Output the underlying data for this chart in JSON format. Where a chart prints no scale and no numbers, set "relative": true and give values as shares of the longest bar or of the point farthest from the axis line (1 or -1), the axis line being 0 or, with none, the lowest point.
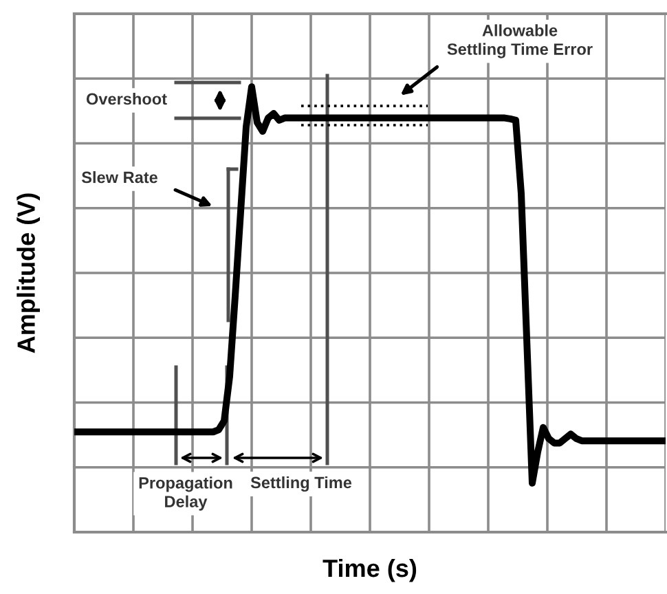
{
  "chart_data": {
    "type": "line",
    "relative": true,
    "xlabel": "Time (s)",
    "ylabel": "Amplitude (V)",
    "grid": true,
    "legend": false,
    "marker": "none",
    "line_style": "solid",
    "categories": [
      null,
      null,
      null,
      null,
      null,
      null,
      null,
      null,
      null,
      null,
      null,
      null,
      null,
      null,
      null,
      null,
      null,
      null,
      null,
      null,
      null,
      null,
      null,
      null,
      null,
      null,
      null,
      null,
      null,
      null,
      null,
      null,
      null,
      null,
      null,
      null,
      null,
      null,
      null,
      null,
      null,
      null,
      null,
      null,
      null,
      null,
      null,
      null,
      null,
      null,
      null,
      null,
      null,
      null,
      null,
      null,
      null,
      null,
      null,
      null,
      null,
      null,
      null,
      null,
      null,
      null,
      null,
      null,
      null,
      null,
      null,
      null,
      null,
      null,
      null,
      null,
      null,
      null,
      null,
      null,
      null,
      null,
      null,
      null,
      null,
      null,
      null,
      null,
      null,
      null,
      null,
      null,
      null,
      null,
      null,
      null,
      null,
      null,
      null,
      null,
      null,
      null,
      null,
      null,
      null,
      null,
      null,
      null
    ],
    "series": [
      {
        "color": "#000000",
        "values": [
          0.225,
          0.225,
          0.225,
          0.225,
          0.225,
          0.225,
          0.225,
          0.225,
          0.225,
          0.225,
          0.225,
          0.225,
          0.225,
          0.225,
          0.225,
          0.225,
          0.225,
          0.225,
          0.225,
          0.225,
          0.225,
          0.225,
          0.225,
          0.225,
          0.225,
          0.225,
          0.23,
          0.25,
          0.35,
          0.53,
          0.72,
          0.91,
          1.0,
          0.92,
          0.9,
          0.93,
          0.94,
          0.925,
          0.93,
          0.93,
          0.93,
          0.93,
          0.93,
          0.93,
          0.93,
          0.93,
          0.93,
          0.93,
          0.93,
          0.93,
          0.93,
          0.93,
          0.93,
          0.93,
          0.93,
          0.93,
          0.93,
          0.93,
          0.93,
          0.93,
          0.93,
          0.93,
          0.93,
          0.93,
          0.93,
          0.93,
          0.93,
          0.93,
          0.93,
          0.93,
          0.93,
          0.93,
          0.93,
          0.93,
          0.93,
          0.93,
          0.93,
          0.93,
          0.93,
          0.928,
          0.925,
          0.76,
          0.435,
          0.11,
          0.18,
          0.235,
          0.21,
          0.2,
          0.2,
          0.21,
          0.22,
          0.21,
          0.205,
          0.205,
          0.205,
          0.205,
          0.205,
          0.205,
          0.205,
          0.205,
          0.205,
          0.205,
          0.205,
          0.205,
          0.205,
          0.205,
          0.205,
          0.205
        ]
      },
      {
        "color": "#000000",
        "line_style": "dotted",
        "values": [
          null,
          null,
          null,
          null,
          null,
          null,
          null,
          null,
          null,
          null,
          null,
          null,
          null,
          null,
          null,
          null,
          null,
          null,
          null,
          null,
          null,
          null,
          null,
          null,
          null,
          null,
          null,
          null,
          null,
          null,
          null,
          null,
          null,
          null,
          null,
          null,
          null,
          null,
          null,
          null,
          null,
          0.957,
          0.957,
          0.957,
          0.957,
          0.957,
          0.957,
          0.957,
          0.957,
          0.957,
          0.957,
          0.957,
          0.957,
          0.957,
          0.957,
          0.957,
          0.957,
          0.957,
          0.957,
          0.957,
          0.957,
          0.957,
          0.957,
          0.957,
          0.957,
          null,
          null,
          null,
          null,
          null,
          null,
          null,
          null,
          null,
          null,
          null,
          null,
          null,
          null,
          null,
          null,
          null,
          null,
          null,
          null,
          null,
          null,
          null,
          null,
          null,
          null,
          null,
          null,
          null,
          null,
          null,
          null,
          null,
          null,
          null,
          null,
          null,
          null,
          null,
          null,
          null,
          null,
          null
        ]
      },
      {
        "color": "#000000",
        "line_style": "dotted",
        "values": [
          null,
          null,
          null,
          null,
          null,
          null,
          null,
          null,
          null,
          null,
          null,
          null,
          null,
          null,
          null,
          null,
          null,
          null,
          null,
          null,
          null,
          null,
          null,
          null,
          null,
          null,
          null,
          null,
          null,
          null,
          null,
          null,
          null,
          null,
          null,
          null,
          null,
          null,
          null,
          null,
          null,
          0.914,
          0.914,
          0.914,
          0.914,
          0.914,
          0.914,
          0.914,
          0.914,
          0.914,
          0.914,
          0.914,
          0.914,
          0.914,
          0.914,
          0.914,
          0.914,
          0.914,
          0.914,
          0.914,
          0.914,
          0.914,
          0.914,
          0.914,
          0.914,
          null,
          null,
          null,
          null,
          null,
          null,
          null,
          null,
          null,
          null,
          null,
          null,
          null,
          null,
          null,
          null,
          null,
          null,
          null,
          null,
          null,
          null,
          null,
          null,
          null,
          null,
          null,
          null,
          null,
          null,
          null,
          null,
          null,
          null,
          null,
          null,
          null,
          null,
          null,
          null,
          null,
          null,
          null
        ]
      }
    ],
    "annotations": [
      "Overshoot",
      "Slew Rate",
      "Allowable\nSettling Time Error",
      "Propagation\nDelay",
      "Settling Time"
    ]
  }
}
